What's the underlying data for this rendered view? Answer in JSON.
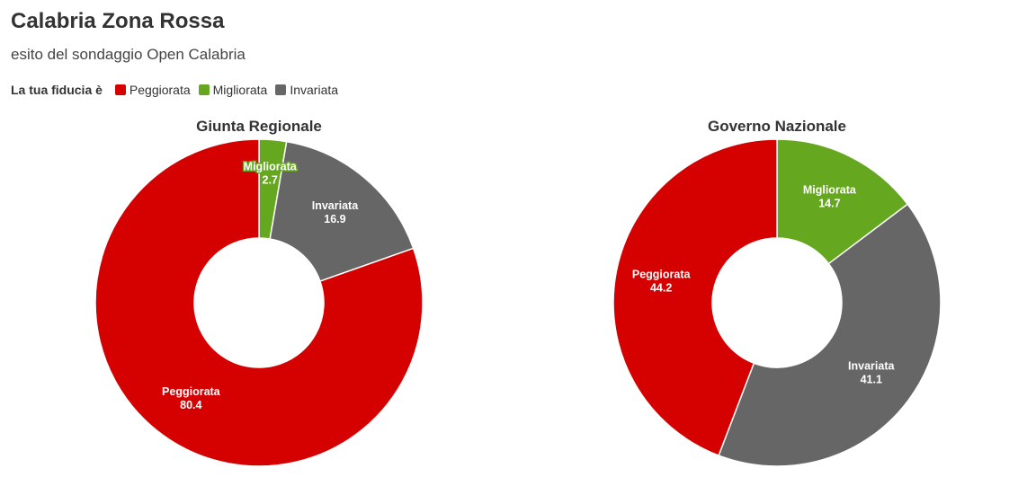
{
  "header": {
    "title": "Calabria Zona Rossa",
    "subtitle": "esito del sondaggio Open Calabria"
  },
  "legend": {
    "title": "La tua fiducia è",
    "items": [
      {
        "label": "Peggiorata",
        "color": "#d50000"
      },
      {
        "label": "Migliorata",
        "color": "#65a81f"
      },
      {
        "label": "Invariata",
        "color": "#666666"
      }
    ]
  },
  "chart_data": [
    {
      "type": "pie",
      "title": "Giunta Regionale",
      "slices": [
        {
          "label": "Migliorata",
          "value": 2.7,
          "color": "#65a81f"
        },
        {
          "label": "Invariata",
          "value": 16.9,
          "color": "#666666"
        },
        {
          "label": "Peggiorata",
          "value": 80.4,
          "color": "#d50000"
        }
      ]
    },
    {
      "type": "pie",
      "title": "Governo Nazionale",
      "slices": [
        {
          "label": "Migliorata",
          "value": 14.7,
          "color": "#65a81f"
        },
        {
          "label": "Invariata",
          "value": 41.1,
          "color": "#666666"
        },
        {
          "label": "Peggiorata",
          "value": 44.2,
          "color": "#d50000"
        }
      ]
    }
  ]
}
